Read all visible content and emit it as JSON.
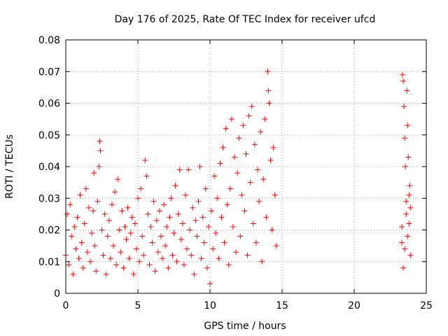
{
  "chart_data": {
    "type": "scatter",
    "title": "Day 176 of 2025, Rate Of TEC Index for receiver ufcd",
    "xlabel": "GPS time / hours",
    "ylabel": "ROTI / TECUs",
    "xlim": [
      0,
      25
    ],
    "ylim": [
      0,
      0.08
    ],
    "x_ticks": [
      "0",
      "5",
      "10",
      "15",
      "20",
      "25"
    ],
    "y_ticks": [
      "0",
      "0.01",
      "0.02",
      "0.03",
      "0.04",
      "0.05",
      "0.06",
      "0.07",
      "0.08"
    ],
    "grid": true,
    "marker": "+",
    "color": "#ff0000",
    "series": [
      {
        "points": [
          [
            0.0,
            0.012
          ],
          [
            0.1,
            0.025
          ],
          [
            0.2,
            0.009
          ],
          [
            0.3,
            0.028
          ],
          [
            0.4,
            0.018
          ],
          [
            0.5,
            0.006
          ],
          [
            0.6,
            0.021
          ],
          [
            0.7,
            0.014
          ],
          [
            0.8,
            0.024
          ],
          [
            0.9,
            0.011
          ],
          [
            1.0,
            0.031
          ],
          [
            1.1,
            0.016
          ],
          [
            1.2,
            0.008
          ],
          [
            1.3,
            0.022
          ],
          [
            1.4,
            0.033
          ],
          [
            1.5,
            0.013
          ],
          [
            1.6,
            0.027
          ],
          [
            1.7,
            0.01
          ],
          [
            1.8,
            0.019
          ],
          [
            1.9,
            0.026
          ],
          [
            1.95,
            0.038
          ],
          [
            2.0,
            0.015
          ],
          [
            2.1,
            0.007
          ],
          [
            2.2,
            0.029
          ],
          [
            2.3,
            0.04
          ],
          [
            2.35,
            0.048
          ],
          [
            2.4,
            0.045
          ],
          [
            2.5,
            0.02
          ],
          [
            2.6,
            0.012
          ],
          [
            2.7,
            0.025
          ],
          [
            2.8,
            0.006
          ],
          [
            2.9,
            0.018
          ],
          [
            3.0,
            0.023
          ],
          [
            3.1,
            0.011
          ],
          [
            3.2,
            0.028
          ],
          [
            3.3,
            0.015
          ],
          [
            3.4,
            0.032
          ],
          [
            3.5,
            0.009
          ],
          [
            3.6,
            0.036
          ],
          [
            3.7,
            0.02
          ],
          [
            3.8,
            0.013
          ],
          [
            3.9,
            0.026
          ],
          [
            4.0,
            0.008
          ],
          [
            4.1,
            0.021
          ],
          [
            4.2,
            0.017
          ],
          [
            4.3,
            0.027
          ],
          [
            4.4,
            0.011
          ],
          [
            4.5,
            0.019
          ],
          [
            4.6,
            0.024
          ],
          [
            4.7,
            0.006
          ],
          [
            4.8,
            0.022
          ],
          [
            4.9,
            0.014
          ],
          [
            5.0,
            0.03
          ],
          [
            5.1,
            0.01
          ],
          [
            5.2,
            0.033
          ],
          [
            5.3,
            0.018
          ],
          [
            5.4,
            0.012
          ],
          [
            5.5,
            0.042
          ],
          [
            5.6,
            0.037
          ],
          [
            5.7,
            0.025
          ],
          [
            5.8,
            0.009
          ],
          [
            5.9,
            0.021
          ],
          [
            6.0,
            0.016
          ],
          [
            6.1,
            0.029
          ],
          [
            6.2,
            0.007
          ],
          [
            6.3,
            0.023
          ],
          [
            6.4,
            0.013
          ],
          [
            6.5,
            0.026
          ],
          [
            6.6,
            0.018
          ],
          [
            6.7,
            0.011
          ],
          [
            6.8,
            0.028
          ],
          [
            6.9,
            0.015
          ],
          [
            7.0,
            0.021
          ],
          [
            7.1,
            0.008
          ],
          [
            7.2,
            0.024
          ],
          [
            7.3,
            0.03
          ],
          [
            7.4,
            0.012
          ],
          [
            7.5,
            0.019
          ],
          [
            7.6,
            0.034
          ],
          [
            7.7,
            0.01
          ],
          [
            7.8,
            0.025
          ],
          [
            7.9,
            0.039
          ],
          [
            8.0,
            0.017
          ],
          [
            8.1,
            0.022
          ],
          [
            8.2,
            0.009
          ],
          [
            8.3,
            0.031
          ],
          [
            8.4,
            0.014
          ],
          [
            8.5,
            0.039
          ],
          [
            8.6,
            0.02
          ],
          [
            8.7,
            0.012
          ],
          [
            8.8,
            0.027
          ],
          [
            8.9,
            0.006
          ],
          [
            9.0,
            0.023
          ],
          [
            9.1,
            0.018
          ],
          [
            9.2,
            0.029
          ],
          [
            9.3,
            0.04
          ],
          [
            9.4,
            0.011
          ],
          [
            9.5,
            0.024
          ],
          [
            9.6,
            0.016
          ],
          [
            9.7,
            0.033
          ],
          [
            9.8,
            0.008
          ],
          [
            9.9,
            0.021
          ],
          [
            10.0,
            0.003
          ],
          [
            10.1,
            0.026
          ],
          [
            10.2,
            0.014
          ],
          [
            10.3,
            0.037
          ],
          [
            10.4,
            0.019
          ],
          [
            10.5,
            0.03
          ],
          [
            10.6,
            0.011
          ],
          [
            10.7,
            0.041
          ],
          [
            10.8,
            0.024
          ],
          [
            10.9,
            0.046
          ],
          [
            11.0,
            0.016
          ],
          [
            11.1,
            0.052
          ],
          [
            11.2,
            0.028
          ],
          [
            11.3,
            0.009
          ],
          [
            11.4,
            0.033
          ],
          [
            11.5,
            0.055
          ],
          [
            11.6,
            0.021
          ],
          [
            11.7,
            0.043
          ],
          [
            11.8,
            0.013
          ],
          [
            11.9,
            0.038
          ],
          [
            12.0,
            0.049
          ],
          [
            12.1,
            0.018
          ],
          [
            12.2,
            0.031
          ],
          [
            12.3,
            0.053
          ],
          [
            12.4,
            0.026
          ],
          [
            12.5,
            0.044
          ],
          [
            12.6,
            0.012
          ],
          [
            12.7,
            0.056
          ],
          [
            12.8,
            0.035
          ],
          [
            12.9,
            0.059
          ],
          [
            13.0,
            0.022
          ],
          [
            13.1,
            0.047
          ],
          [
            13.2,
            0.016
          ],
          [
            13.3,
            0.039
          ],
          [
            13.4,
            0.029
          ],
          [
            13.5,
            0.051
          ],
          [
            13.6,
            0.01
          ],
          [
            13.7,
            0.036
          ],
          [
            13.8,
            0.055
          ],
          [
            13.9,
            0.024
          ],
          [
            14.0,
            0.07
          ],
          [
            14.05,
            0.064
          ],
          [
            14.1,
            0.06
          ],
          [
            14.2,
            0.042
          ],
          [
            14.3,
            0.02
          ],
          [
            14.4,
            0.046
          ],
          [
            14.5,
            0.031
          ],
          [
            14.6,
            0.015
          ],
          [
            23.3,
            0.016
          ],
          [
            23.35,
            0.069
          ],
          [
            23.4,
            0.067
          ],
          [
            23.45,
            0.059
          ],
          [
            23.5,
            0.049
          ],
          [
            23.55,
            0.04
          ],
          [
            23.6,
            0.025
          ],
          [
            23.65,
            0.064
          ],
          [
            23.7,
            0.053
          ],
          [
            23.75,
            0.043
          ],
          [
            23.8,
            0.022
          ],
          [
            23.85,
            0.034
          ],
          [
            23.9,
            0.012
          ],
          [
            23.4,
            0.008
          ],
          [
            23.6,
            0.029
          ],
          [
            23.7,
            0.018
          ],
          [
            23.9,
            0.027
          ],
          [
            23.5,
            0.014
          ],
          [
            23.8,
            0.031
          ],
          [
            23.3,
            0.021
          ]
        ]
      }
    ]
  }
}
